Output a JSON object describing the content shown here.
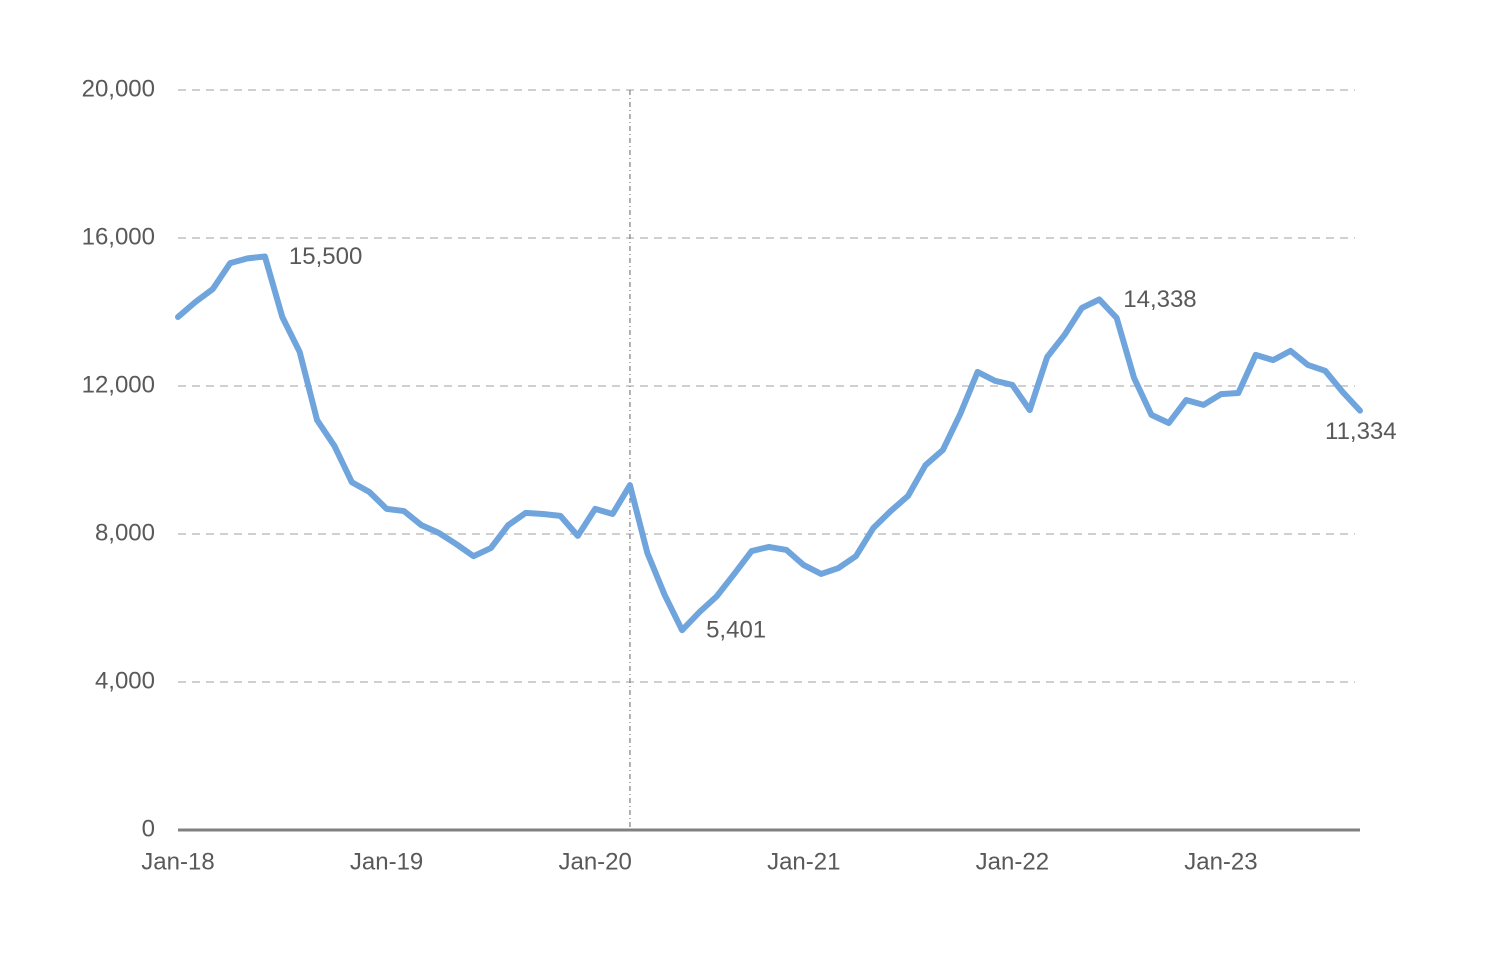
{
  "chart_data": {
    "type": "line",
    "categories": [
      "Jan-18",
      null,
      null,
      null,
      null,
      null,
      null,
      null,
      null,
      null,
      null,
      null,
      "Jan-19",
      null,
      null,
      null,
      null,
      null,
      null,
      null,
      null,
      null,
      null,
      null,
      "Jan-20",
      null,
      null,
      null,
      null,
      null,
      null,
      null,
      null,
      null,
      null,
      null,
      "Jan-21",
      null,
      null,
      null,
      null,
      null,
      null,
      null,
      null,
      null,
      null,
      null,
      "Jan-22",
      null,
      null,
      null,
      null,
      null,
      null,
      null,
      null,
      null,
      null,
      null,
      "Jan-23",
      null,
      null,
      null,
      null,
      null,
      null,
      null,
      null
    ],
    "series": [
      {
        "color": "#6fa5dc",
        "values": [
          13865,
          14270,
          14620,
          15320,
          15450,
          15500,
          13865,
          12920,
          11080,
          10380,
          9400,
          9140,
          8680,
          8620,
          8240,
          8030,
          7730,
          7400,
          7620,
          8240,
          8570,
          8540,
          8490,
          7950,
          8680,
          8540,
          9320,
          7490,
          6350,
          5401,
          5890,
          6320,
          6920,
          7540,
          7650,
          7570,
          7160,
          6920,
          7080,
          7400,
          8160,
          8620,
          9030,
          9860,
          10270,
          11240,
          12380,
          12140,
          12030,
          11350,
          12780,
          13380,
          14110,
          14338,
          13840,
          12220,
          11220,
          11000,
          11620,
          11490,
          11780,
          11810,
          12840,
          12700,
          12950,
          12570,
          12410,
          11840,
          11334
        ],
        "value_labels": [
          null,
          null,
          null,
          null,
          null,
          "15,500",
          null,
          null,
          null,
          null,
          null,
          null,
          null,
          null,
          null,
          null,
          null,
          null,
          null,
          null,
          null,
          null,
          null,
          null,
          null,
          null,
          null,
          null,
          null,
          "5,401",
          null,
          null,
          null,
          null,
          null,
          null,
          null,
          null,
          null,
          null,
          null,
          null,
          null,
          null,
          null,
          null,
          null,
          null,
          null,
          null,
          null,
          null,
          null,
          "14,338",
          null,
          null,
          null,
          null,
          null,
          null,
          null,
          null,
          null,
          null,
          null,
          null,
          null,
          null,
          "11,334"
        ]
      }
    ],
    "ylim": [
      0,
      20000
    ],
    "yticks": [
      0,
      {
        "value": 4000,
        "label": "4,000"
      },
      {
        "value": 8000,
        "label": "8,000"
      },
      {
        "value": 12000,
        "label": "12,000"
      },
      {
        "value": 16000,
        "label": "16,000"
      },
      {
        "value": 20000,
        "label": "20,000"
      }
    ],
    "grid": true,
    "reference_line_index": 26
  }
}
